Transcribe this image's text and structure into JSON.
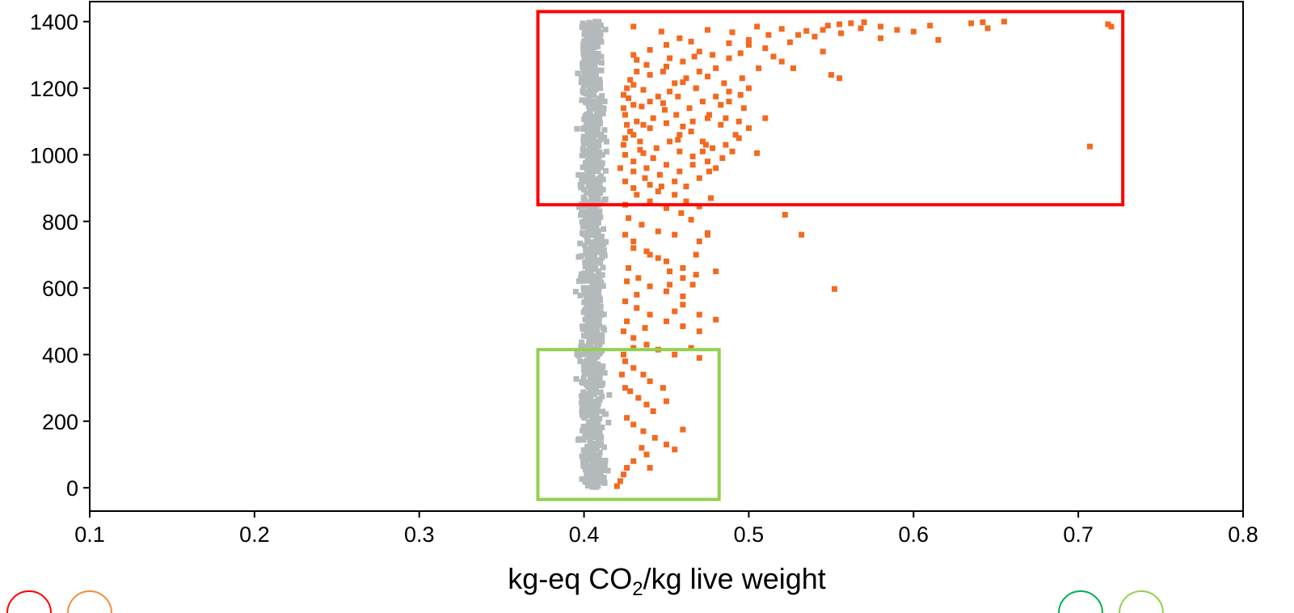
{
  "chart_data": {
    "type": "scatter",
    "title": "",
    "xlabel": "kg-eq CO",
    "xlabel_subscript": "2",
    "xlabel_suffix": "/kg live weight",
    "ylabel": "",
    "xlim": [
      0.1,
      0.8
    ],
    "ylim": [
      -70,
      1460
    ],
    "xticks": [
      {
        "v": 0.1,
        "label": "0.1"
      },
      {
        "v": 0.2,
        "label": "0.2"
      },
      {
        "v": 0.3,
        "label": "0.3"
      },
      {
        "v": 0.4,
        "label": "0.4"
      },
      {
        "v": 0.5,
        "label": "0.5"
      },
      {
        "v": 0.6,
        "label": "0.6"
      },
      {
        "v": 0.7,
        "label": "0.7"
      },
      {
        "v": 0.8,
        "label": "0.8"
      }
    ],
    "yticks": [
      {
        "v": 0,
        "label": "0"
      },
      {
        "v": 200,
        "label": "200"
      },
      {
        "v": 400,
        "label": "400"
      },
      {
        "v": 600,
        "label": "600"
      },
      {
        "v": 800,
        "label": "800"
      },
      {
        "v": 1000,
        "label": "1000"
      },
      {
        "v": 1200,
        "label": "1200"
      },
      {
        "v": 1400,
        "label": "1400"
      }
    ],
    "grid": false,
    "series": [
      {
        "color": "#b4b9bc",
        "distribution": {
          "x_center": 0.405,
          "x_spread": 0.007,
          "x_min": 0.395,
          "x_max": 0.421,
          "y_min": 0,
          "y_max": 1400,
          "count": 1200
        }
      },
      {
        "color": "#f26a21",
        "points": [
          [
            0.43,
            1385
          ],
          [
            0.447,
            1370
          ],
          [
            0.475,
            1375
          ],
          [
            0.49,
            1368
          ],
          [
            0.505,
            1385
          ],
          [
            0.52,
            1378
          ],
          [
            0.535,
            1372
          ],
          [
            0.548,
            1388
          ],
          [
            0.555,
            1392
          ],
          [
            0.562,
            1395
          ],
          [
            0.568,
            1380
          ],
          [
            0.58,
            1385
          ],
          [
            0.61,
            1388
          ],
          [
            0.615,
            1345
          ],
          [
            0.635,
            1395
          ],
          [
            0.642,
            1398
          ],
          [
            0.645,
            1380
          ],
          [
            0.655,
            1400
          ],
          [
            0.718,
            1392
          ],
          [
            0.72,
            1385
          ],
          [
            0.58,
            1350
          ],
          [
            0.556,
            1365
          ],
          [
            0.5,
            1330
          ],
          [
            0.51,
            1320
          ],
          [
            0.525,
            1338
          ],
          [
            0.54,
            1355
          ],
          [
            0.545,
            1310
          ],
          [
            0.55,
            1240
          ],
          [
            0.555,
            1230
          ],
          [
            0.515,
            1295
          ],
          [
            0.495,
            1305
          ],
          [
            0.488,
            1290
          ],
          [
            0.48,
            1260
          ],
          [
            0.475,
            1235
          ],
          [
            0.47,
            1250
          ],
          [
            0.485,
            1215
          ],
          [
            0.468,
            1200
          ],
          [
            0.46,
            1218
          ],
          [
            0.452,
            1190
          ],
          [
            0.445,
            1175
          ],
          [
            0.44,
            1160
          ],
          [
            0.435,
            1145
          ],
          [
            0.43,
            1150
          ],
          [
            0.425,
            1120
          ],
          [
            0.432,
            1100
          ],
          [
            0.44,
            1080
          ],
          [
            0.45,
            1095
          ],
          [
            0.458,
            1060
          ],
          [
            0.465,
            1070
          ],
          [
            0.472,
            1040
          ],
          [
            0.478,
            1020
          ],
          [
            0.486,
            1030
          ],
          [
            0.494,
            1050
          ],
          [
            0.505,
            1005
          ],
          [
            0.425,
            1000
          ],
          [
            0.43,
            980
          ],
          [
            0.438,
            960
          ],
          [
            0.446,
            940
          ],
          [
            0.455,
            920
          ],
          [
            0.462,
            905
          ],
          [
            0.47,
            930
          ],
          [
            0.476,
            950
          ],
          [
            0.432,
            880
          ],
          [
            0.44,
            860
          ],
          [
            0.45,
            840
          ],
          [
            0.459,
            825
          ],
          [
            0.465,
            805
          ],
          [
            0.425,
            850
          ],
          [
            0.427,
            810
          ],
          [
            0.435,
            790
          ],
          [
            0.445,
            770
          ],
          [
            0.455,
            760
          ],
          [
            0.47,
            740
          ],
          [
            0.475,
            765
          ],
          [
            0.43,
            720
          ],
          [
            0.44,
            700
          ],
          [
            0.45,
            680
          ],
          [
            0.46,
            660
          ],
          [
            0.468,
            640
          ],
          [
            0.427,
            660
          ],
          [
            0.433,
            630
          ],
          [
            0.44,
            605
          ],
          [
            0.45,
            590
          ],
          [
            0.46,
            575
          ],
          [
            0.425,
            560
          ],
          [
            0.432,
            540
          ],
          [
            0.44,
            520
          ],
          [
            0.45,
            500
          ],
          [
            0.46,
            485
          ],
          [
            0.47,
            470
          ],
          [
            0.48,
            505
          ],
          [
            0.424,
            470
          ],
          [
            0.43,
            450
          ],
          [
            0.438,
            430
          ],
          [
            0.445,
            415
          ],
          [
            0.455,
            400
          ],
          [
            0.465,
            420
          ],
          [
            0.47,
            390
          ],
          [
            0.425,
            380
          ],
          [
            0.43,
            360
          ],
          [
            0.436,
            340
          ],
          [
            0.44,
            320
          ],
          [
            0.448,
            300
          ],
          [
            0.428,
            290
          ],
          [
            0.433,
            270
          ],
          [
            0.438,
            250
          ],
          [
            0.442,
            230
          ],
          [
            0.426,
            210
          ],
          [
            0.43,
            190
          ],
          [
            0.436,
            170
          ],
          [
            0.443,
            150
          ],
          [
            0.45,
            130
          ],
          [
            0.455,
            115
          ],
          [
            0.438,
            100
          ],
          [
            0.43,
            80
          ],
          [
            0.426,
            60
          ],
          [
            0.424,
            40
          ],
          [
            0.422,
            20
          ],
          [
            0.42,
            5
          ],
          [
            0.45,
            260
          ],
          [
            0.46,
            175
          ],
          [
            0.432,
            1250
          ],
          [
            0.44,
            1240
          ],
          [
            0.45,
            1265
          ],
          [
            0.46,
            1280
          ],
          [
            0.467,
            1295
          ],
          [
            0.43,
            1300
          ],
          [
            0.44,
            1315
          ],
          [
            0.45,
            1330
          ],
          [
            0.458,
            1350
          ],
          [
            0.465,
            1340
          ],
          [
            0.47,
            1310
          ],
          [
            0.478,
            1300
          ],
          [
            0.488,
            1335
          ],
          [
            0.5,
            1345
          ],
          [
            0.512,
            1360
          ],
          [
            0.53,
            1360
          ],
          [
            0.545,
            1375
          ],
          [
            0.57,
            1398
          ],
          [
            0.59,
            1375
          ],
          [
            0.6,
            1370
          ],
          [
            0.52,
            1280
          ],
          [
            0.527,
            1260
          ],
          [
            0.506,
            1260
          ],
          [
            0.496,
            1230
          ],
          [
            0.488,
            1190
          ],
          [
            0.48,
            1175
          ],
          [
            0.472,
            1160
          ],
          [
            0.464,
            1140
          ],
          [
            0.456,
            1120
          ],
          [
            0.449,
            1135
          ],
          [
            0.442,
            1110
          ],
          [
            0.436,
            1090
          ],
          [
            0.428,
            1070
          ],
          [
            0.425,
            1050
          ],
          [
            0.424,
            1030
          ],
          [
            0.422,
            960
          ],
          [
            0.425,
            920
          ],
          [
            0.43,
            900
          ],
          [
            0.44,
            910
          ],
          [
            0.445,
            890
          ],
          [
            0.455,
            880
          ],
          [
            0.462,
            860
          ],
          [
            0.47,
            845
          ],
          [
            0.477,
            870
          ],
          [
            0.458,
            1010
          ],
          [
            0.466,
            995
          ],
          [
            0.475,
            980
          ],
          [
            0.484,
            990
          ],
          [
            0.492,
            1060
          ],
          [
            0.5,
            1080
          ],
          [
            0.51,
            1110
          ],
          [
            0.424,
            1180
          ],
          [
            0.426,
            1200
          ],
          [
            0.43,
            1210
          ],
          [
            0.428,
            1225
          ],
          [
            0.436,
            1195
          ],
          [
            0.448,
            1155
          ],
          [
            0.457,
            1175
          ],
          [
            0.483,
            1150
          ],
          [
            0.497,
            1140
          ],
          [
            0.475,
            1110
          ],
          [
            0.483,
            1090
          ],
          [
            0.466,
            1100
          ],
          [
            0.46,
            1085
          ],
          [
            0.452,
            1040
          ],
          [
            0.444,
            1020
          ],
          [
            0.436,
            1005
          ],
          [
            0.43,
            950
          ],
          [
            0.437,
            930
          ],
          [
            0.447,
            905
          ],
          [
            0.457,
            1045
          ],
          [
            0.472,
            1010
          ],
          [
            0.48,
            960
          ],
          [
            0.425,
            760
          ],
          [
            0.43,
            740
          ],
          [
            0.438,
            710
          ],
          [
            0.445,
            690
          ],
          [
            0.452,
            650
          ],
          [
            0.46,
            630
          ],
          [
            0.466,
            610
          ],
          [
            0.46,
            550
          ],
          [
            0.455,
            530
          ],
          [
            0.47,
            520
          ],
          [
            0.426,
            620
          ],
          [
            0.432,
            580
          ],
          [
            0.426,
            500
          ],
          [
            0.437,
            480
          ],
          [
            0.43,
            420
          ],
          [
            0.424,
            400
          ],
          [
            0.423,
            340
          ],
          [
            0.425,
            300
          ],
          [
            0.435,
            120
          ],
          [
            0.44,
            60
          ],
          [
            0.522,
            820
          ],
          [
            0.532,
            760
          ],
          [
            0.552,
            597
          ],
          [
            0.707,
            1025
          ],
          [
            0.475,
            760
          ],
          [
            0.468,
            700
          ],
          [
            0.48,
            650
          ],
          [
            0.452,
            610
          ],
          [
            0.5,
            1200
          ],
          [
            0.495,
            1180
          ],
          [
            0.488,
            1160
          ],
          [
            0.476,
            1120
          ],
          [
            0.468,
            1200
          ],
          [
            0.462,
            1230
          ],
          [
            0.455,
            1215
          ],
          [
            0.448,
            1250
          ],
          [
            0.452,
            1290
          ],
          [
            0.438,
            1270
          ],
          [
            0.432,
            1285
          ],
          [
            0.427,
            1170
          ],
          [
            0.424,
            1140
          ],
          [
            0.426,
            1090
          ],
          [
            0.43,
            1060
          ],
          [
            0.434,
            1040
          ],
          [
            0.434,
            1015
          ],
          [
            0.442,
            990
          ],
          [
            0.45,
            970
          ],
          [
            0.458,
            950
          ],
          [
            0.466,
            970
          ],
          [
            0.474,
            1030
          ],
          [
            0.49,
            1010
          ],
          [
            0.486,
            1110
          ],
          [
            0.494,
            1100
          ]
        ]
      }
    ],
    "annotations": [
      {
        "type": "rectangle",
        "color": "#ff0000",
        "x_range": [
          0.372,
          0.727
        ],
        "y_range": [
          850,
          1430
        ]
      },
      {
        "type": "rectangle",
        "color": "#92d050",
        "x_range": [
          0.372,
          0.482
        ],
        "y_range": [
          -35,
          415
        ]
      }
    ],
    "legend_partial": [
      {
        "color": "#ff0000"
      },
      {
        "color": "#f28c3c"
      },
      {
        "color": "#00b050"
      },
      {
        "color": "#92d050"
      }
    ]
  }
}
